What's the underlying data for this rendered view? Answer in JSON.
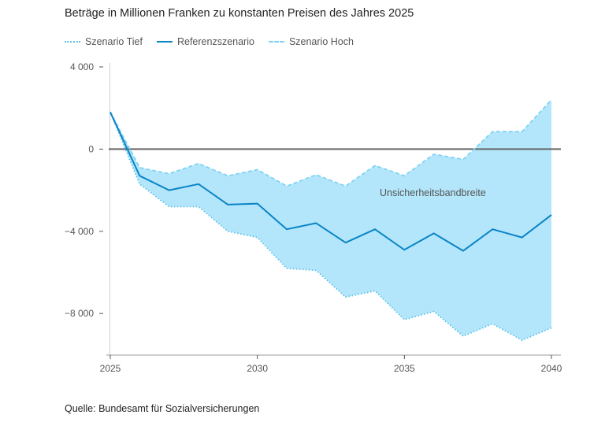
{
  "title": "Beträge in Millionen Franken zu konstanten Preisen des Jahres 2025",
  "source": "Quelle: Bundesamt für Sozialversicherungen",
  "colors": {
    "band": "#b3e6fb",
    "reference": "#0a84c6",
    "low": "#5bc0e8",
    "high": "#7fd3f2",
    "zero_line": "#666666",
    "axis": "#555555"
  },
  "chart_data": {
    "type": "area",
    "title": "Beträge in Millionen Franken zu konstanten Preisen des Jahres 2025",
    "xlabel": "",
    "ylabel": "",
    "xlim": [
      2025,
      2040
    ],
    "ylim": [
      -10000,
      4000
    ],
    "x_ticks": [
      2025,
      2030,
      2035,
      2040
    ],
    "x_tick_labels": [
      "2025",
      "2030",
      "2035",
      "2040"
    ],
    "y_ticks": [
      4000,
      0,
      -4000,
      -8000
    ],
    "y_tick_labels": [
      "4 000",
      "0",
      "−4 000",
      "−8 000"
    ],
    "legend_position": "top-left",
    "band_annotation": "Unsicherheitsbandbreite",
    "x": [
      2025,
      2026,
      2027,
      2028,
      2029,
      2030,
      2031,
      2032,
      2033,
      2034,
      2035,
      2036,
      2037,
      2038,
      2039,
      2040
    ],
    "series": [
      {
        "name": "Szenario Tief",
        "style": "dotted",
        "values": [
          1800,
          -1700,
          -2800,
          -2800,
          -4000,
          -4300,
          -5800,
          -5900,
          -7200,
          -6900,
          -8300,
          -7900,
          -9100,
          -8500,
          -9300,
          -8700
        ]
      },
      {
        "name": "Referenzszenario",
        "style": "solid",
        "values": [
          1800,
          -1300,
          -2000,
          -1700,
          -2700,
          -2650,
          -3900,
          -3600,
          -4550,
          -3900,
          -4900,
          -4100,
          -4950,
          -3900,
          -4300,
          -3200
        ]
      },
      {
        "name": "Szenario Hoch",
        "style": "dashed",
        "values": [
          1800,
          -900,
          -1200,
          -700,
          -1300,
          -1000,
          -1800,
          -1250,
          -1800,
          -800,
          -1300,
          -250,
          -500,
          850,
          850,
          2400
        ]
      }
    ]
  }
}
